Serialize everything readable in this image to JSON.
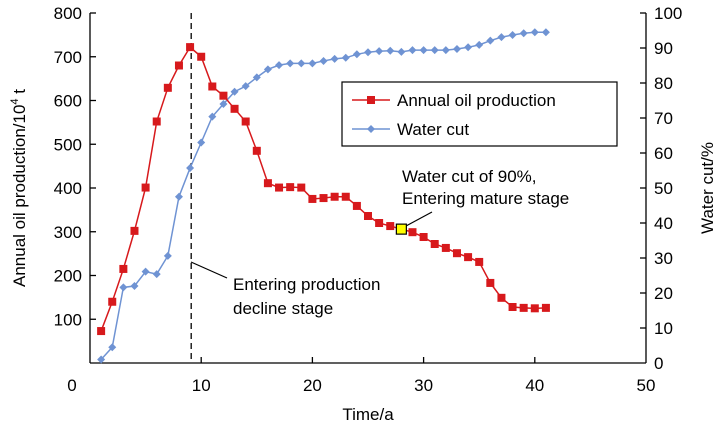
{
  "chart_data": {
    "type": "line",
    "title": "",
    "xlabel": "Time/a",
    "ylabel": "Annual oil production/10⁴ t",
    "ylabel_base": "Annual oil production/10",
    "ylabel_sup": "4",
    "ylabel_unit": " t",
    "y2label": "Water cut/%",
    "xlim": [
      0,
      50
    ],
    "ylim": [
      0,
      800
    ],
    "y2lim": [
      0,
      100
    ],
    "xticks": [
      0,
      10,
      20,
      30,
      40,
      50
    ],
    "yticks": [
      100,
      200,
      300,
      400,
      500,
      600,
      700,
      800
    ],
    "y2ticks": [
      0,
      10,
      20,
      30,
      40,
      50,
      60,
      70,
      80,
      90,
      100
    ],
    "grid": false,
    "legend_position": "upper-right-inside",
    "x": [
      1,
      2,
      3,
      4,
      5,
      6,
      7,
      8,
      9,
      10,
      11,
      12,
      13,
      14,
      15,
      16,
      17,
      18,
      19,
      20,
      21,
      22,
      23,
      24,
      25,
      26,
      27,
      28,
      29,
      30,
      31,
      32,
      33,
      34,
      35,
      36,
      37,
      38,
      39,
      40,
      41
    ],
    "series": [
      {
        "name": "Annual oil production",
        "axis": "left",
        "color": "#d7191c",
        "marker": "square",
        "values": [
          73,
          140,
          215,
          302,
          401,
          552,
          629,
          680,
          722,
          700,
          632,
          611,
          581,
          552,
          485,
          411,
          401,
          402,
          401,
          375,
          377,
          380,
          380,
          359,
          336,
          320,
          313,
          306,
          299,
          288,
          272,
          263,
          251,
          242,
          231,
          183,
          149,
          128,
          126,
          125,
          126
        ]
      },
      {
        "name": "Water cut",
        "axis": "right",
        "color": "#6f93d3",
        "marker": "diamond",
        "values": [
          1.0,
          4.5,
          21.6,
          22.0,
          26.1,
          25.4,
          30.6,
          47.5,
          55.7,
          63.0,
          70.4,
          74.0,
          77.5,
          79.1,
          81.6,
          83.9,
          85.1,
          85.6,
          85.6,
          85.6,
          86.3,
          86.9,
          87.2,
          88.2,
          88.8,
          89.1,
          89.2,
          88.9,
          89.4,
          89.4,
          89.4,
          89.4,
          89.7,
          90.2,
          90.9,
          92.1,
          93.1,
          93.7,
          94.2,
          94.5,
          94.5
        ]
      }
    ],
    "annotations": [
      {
        "name": "production-decline",
        "type": "vertical-dashed-line",
        "x": 9.1,
        "lines": [
          "Entering production",
          "decline stage"
        ]
      },
      {
        "name": "mature-stage",
        "type": "highlight-point",
        "x": 28,
        "y": 306,
        "highlight_color": "#ffff00",
        "lines": [
          "Water cut of 90%,",
          "Entering mature stage"
        ]
      }
    ]
  }
}
